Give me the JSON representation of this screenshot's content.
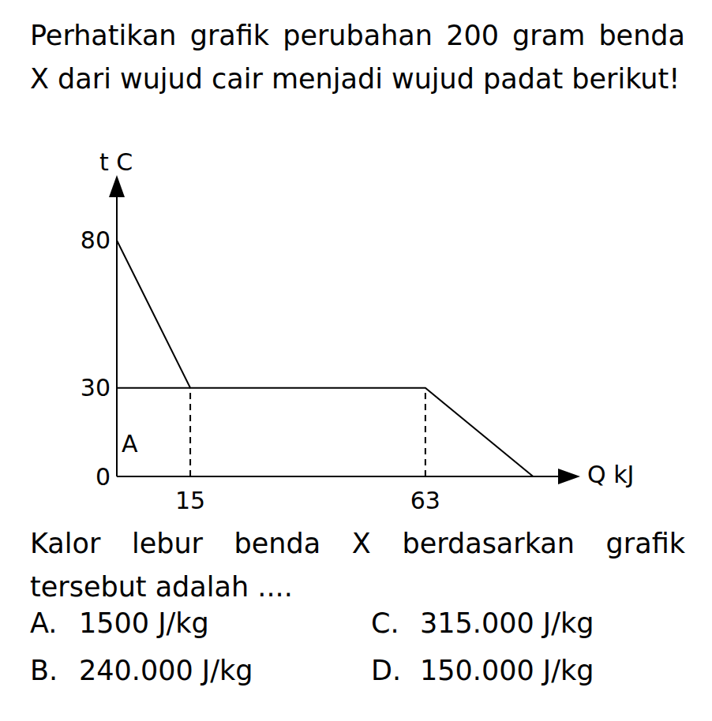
{
  "question": "Perhatikan grafik perubahan 200 gram benda X dari wujud cair menjadi wujud padat berikut!",
  "chart_data": {
    "type": "line",
    "x_label": "Q kJ",
    "y_label": "t C",
    "annotations": [
      "A"
    ],
    "x": [
      0,
      15,
      63,
      85
    ],
    "values": [
      80,
      30,
      30,
      0
    ],
    "color": "#000000",
    "xlim": [
      0,
      93
    ],
    "xticks": [
      15,
      63
    ],
    "ylim": [
      0,
      100
    ],
    "yticks": [
      0,
      30,
      80
    ],
    "grid": false
  },
  "prompt": "Kalor lebur benda X berdasarkan grafik tersebut adalah ....",
  "options": [
    {
      "letter": "A.",
      "text": "1500 J/kg"
    },
    {
      "letter": "B.",
      "text": "240.000 J/kg"
    },
    {
      "letter": "C.",
      "text": "315.000 J/kg"
    },
    {
      "letter": "D.",
      "text": "150.000 J/kg"
    }
  ]
}
